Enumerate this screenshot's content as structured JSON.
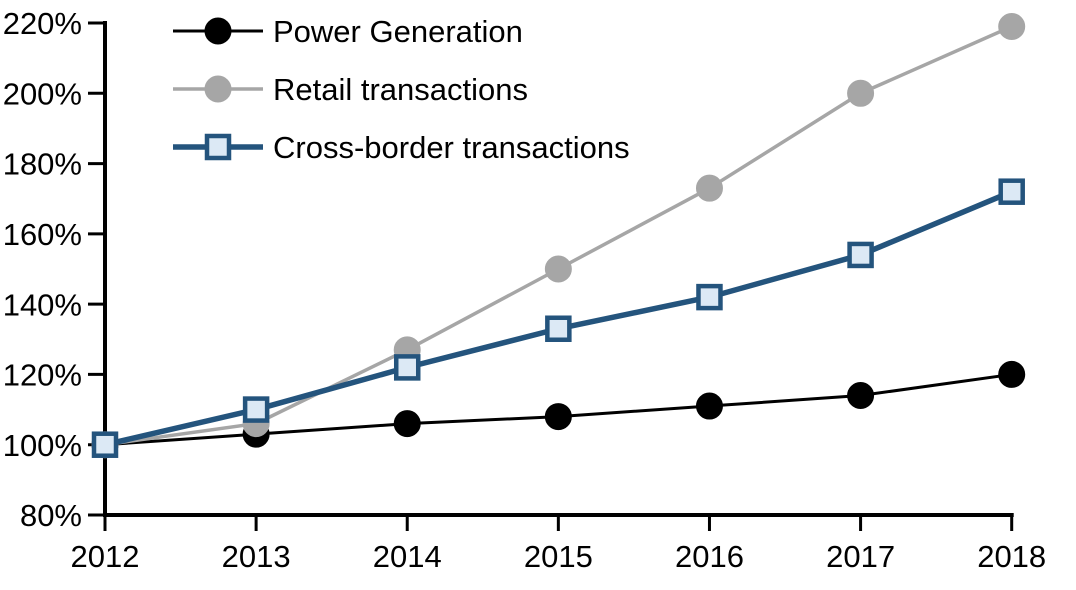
{
  "chart_data": {
    "type": "line",
    "title": "",
    "xlabel": "",
    "ylabel": "",
    "categories": [
      "2012",
      "2013",
      "2014",
      "2015",
      "2016",
      "2017",
      "2018"
    ],
    "series": [
      {
        "name": "Power Generation",
        "values": [
          100,
          103,
          106,
          108,
          111,
          114,
          120
        ],
        "color": "#000000",
        "marker": "circle",
        "marker_fill": "#000000",
        "line_width": 3
      },
      {
        "name": "Retail transactions",
        "values": [
          100,
          106,
          127,
          150,
          173,
          200,
          219
        ],
        "color": "#A6A6A6",
        "marker": "circle",
        "marker_fill": "#A6A6A6",
        "line_width": 3.5
      },
      {
        "name": "Cross-border transactions",
        "values": [
          100,
          110,
          122,
          133,
          142,
          154,
          172
        ],
        "color": "#24547D",
        "marker": "square",
        "marker_fill": "#DCE9F5",
        "line_width": 5.5
      }
    ],
    "ylim": [
      80,
      220
    ],
    "y_ticks": [
      {
        "value": 80,
        "label": "80%"
      },
      {
        "value": 100,
        "label": "100%"
      },
      {
        "value": 120,
        "label": "120%"
      },
      {
        "value": 140,
        "label": "140%"
      },
      {
        "value": 160,
        "label": "160%"
      },
      {
        "value": 180,
        "label": "180%"
      },
      {
        "value": 200,
        "label": "200%"
      },
      {
        "value": 220,
        "label": "220%"
      }
    ],
    "grid": false,
    "legend_position": "top-left",
    "axis_color": "#000000",
    "background": "#FFFFFF"
  }
}
